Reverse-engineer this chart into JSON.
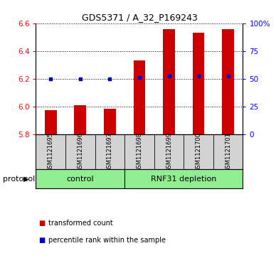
{
  "title": "GDS5371 / A_32_P169243",
  "samples": [
    "GSM1121695",
    "GSM1121696",
    "GSM1121697",
    "GSM1121698",
    "GSM1121699",
    "GSM1121700",
    "GSM1121701"
  ],
  "bar_values": [
    5.975,
    6.01,
    5.985,
    6.335,
    6.555,
    6.53,
    6.555
  ],
  "percentile_values": [
    6.2,
    6.2,
    6.2,
    6.21,
    6.22,
    6.22,
    6.22
  ],
  "ylim": [
    5.8,
    6.6
  ],
  "yticks": [
    5.8,
    6.0,
    6.2,
    6.4,
    6.6
  ],
  "right_yticks": [
    0,
    25,
    50,
    75,
    100
  ],
  "right_ytick_labels": [
    "0",
    "25",
    "50",
    "75",
    "100%"
  ],
  "bar_color": "#cc0000",
  "dot_color": "#0000cc",
  "control_count": 3,
  "control_label": "control",
  "depletion_label": "RNF31 depletion",
  "group_color": "#90ee90",
  "sample_bg_color": "#d3d3d3",
  "legend_items": [
    {
      "color": "#cc0000",
      "label": "transformed count"
    },
    {
      "color": "#0000cc",
      "label": "percentile rank within the sample"
    }
  ],
  "protocol_label": "protocol",
  "bar_width": 0.4,
  "title_fontsize": 9,
  "tick_fontsize": 7.5,
  "sample_fontsize": 6,
  "protocol_fontsize": 8,
  "legend_fontsize": 7
}
